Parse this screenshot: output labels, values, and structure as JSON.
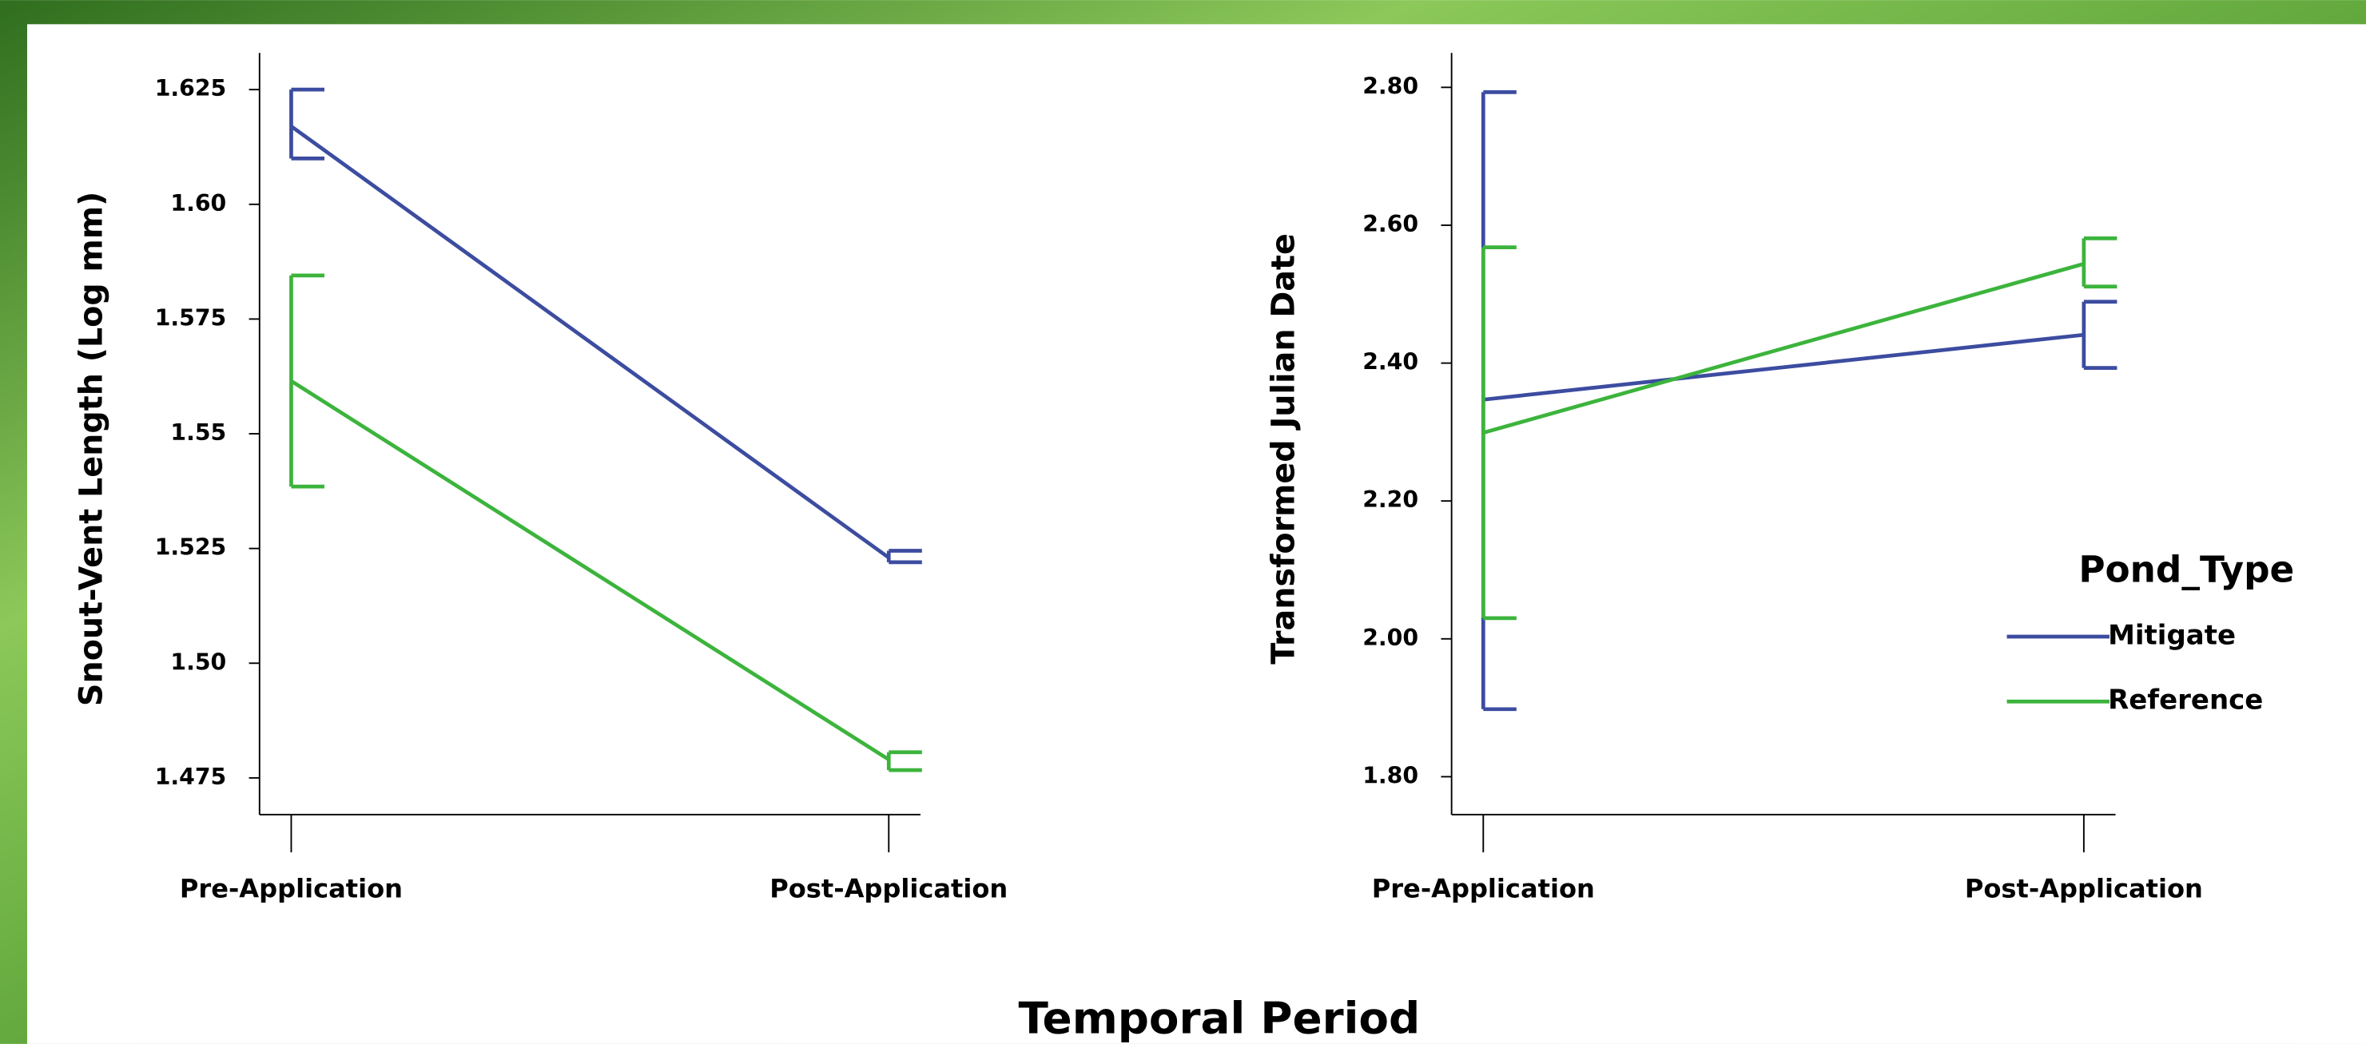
{
  "figure": {
    "xlabel": "Temporal Period"
  },
  "chart_data": [
    {
      "type": "line",
      "ylabel": "Snout-Vent Length (Log mm)",
      "categories": [
        "Pre-Application",
        "Post-Application"
      ],
      "ylim": [
        1.467,
        1.633
      ],
      "yticks": [
        1.625,
        {
          "value": 1.6,
          "label": "1.60"
        },
        1.575,
        1.55,
        1.525,
        {
          "value": 1.5,
          "label": "1.50"
        },
        1.475
      ],
      "series": [
        {
          "name": "Mitigate",
          "color": "#3c4ca0",
          "values": [
            1.617,
            1.523
          ],
          "lower": [
            1.61,
            1.522
          ],
          "upper": [
            1.625,
            1.5245
          ]
        },
        {
          "name": "Reference",
          "color": "#3cb43c",
          "values": [
            1.5615,
            1.479
          ],
          "lower": [
            1.5385,
            1.4767
          ],
          "upper": [
            1.5845,
            1.4806
          ]
        }
      ]
    },
    {
      "type": "line",
      "ylabel": "Transformed Julian Date",
      "categories": [
        "Pre-Application",
        "Post-Application"
      ],
      "ylim": [
        1.745,
        2.85
      ],
      "yticks": [
        {
          "value": 2.8,
          "label": "2.80"
        },
        {
          "value": 2.6,
          "label": "2.60"
        },
        {
          "value": 2.4,
          "label": "2.40"
        },
        {
          "value": 2.2,
          "label": "2.20"
        },
        {
          "value": 2.0,
          "label": "2.00"
        },
        {
          "value": 1.8,
          "label": "1.80"
        }
      ],
      "legend_title": "Pond_Type",
      "legend": "right",
      "series": [
        {
          "name": "Mitigate",
          "color": "#3c4ca0",
          "values": [
            2.347,
            2.441
          ],
          "lower": [
            1.898,
            2.393
          ],
          "upper": [
            2.793,
            2.489
          ]
        },
        {
          "name": "Reference",
          "color": "#3cb43c",
          "values": [
            2.299,
            2.544
          ],
          "lower": [
            2.03,
            2.511
          ],
          "upper": [
            2.568,
            2.581
          ]
        }
      ]
    }
  ]
}
